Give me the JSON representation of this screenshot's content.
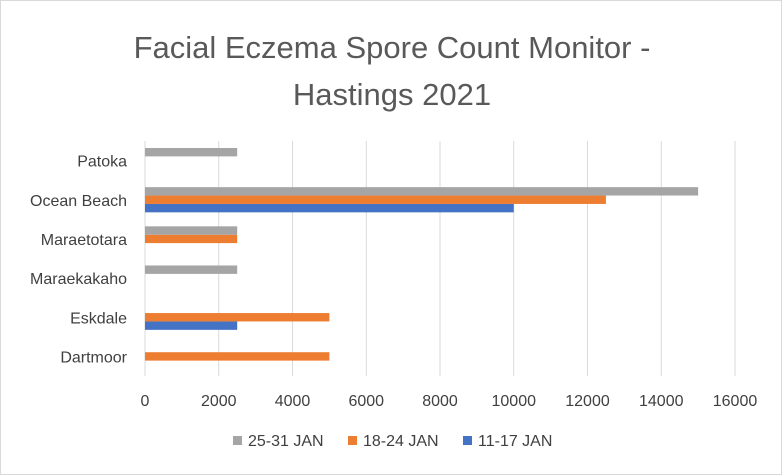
{
  "chart_data": {
    "type": "bar",
    "orientation": "horizontal",
    "title_lines": [
      "Facial Eczema Spore Count Monitor -",
      "Hastings 2021"
    ],
    "title": "Facial Eczema Spore Count Monitor - Hastings 2021",
    "categories": [
      "Dartmoor",
      "Eskdale",
      "Maraekakaho",
      "Maraetotara",
      "Ocean Beach",
      "Patoka"
    ],
    "series": [
      {
        "name": "11-17 JAN",
        "color": "#4472C4",
        "values": [
          0,
          2500,
          0,
          0,
          10000,
          0
        ]
      },
      {
        "name": "18-24 JAN",
        "color": "#ED7D31",
        "values": [
          5000,
          5000,
          0,
          2500,
          12500,
          0
        ]
      },
      {
        "name": "25-31 JAN",
        "color": "#A5A5A5",
        "values": [
          0,
          0,
          2500,
          2500,
          15000,
          2500
        ]
      }
    ],
    "x_ticks": [
      "0",
      "2000",
      "4000",
      "6000",
      "8000",
      "10000",
      "12000",
      "14000",
      "16000"
    ],
    "xlim": [
      0,
      16000
    ],
    "grid": true,
    "legend_position": "bottom",
    "legend_order": [
      "25-31 JAN",
      "18-24 JAN",
      "11-17 JAN"
    ]
  }
}
